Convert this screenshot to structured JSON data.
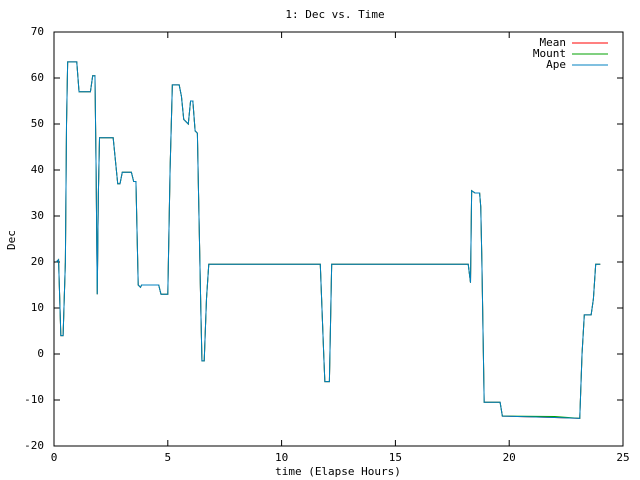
{
  "chart_data": {
    "type": "line",
    "title": "1: Dec vs. Time",
    "x_label": "time (Elapse Hours)",
    "y_label": "Dec",
    "x": [
      0.1,
      0.2,
      0.3,
      0.4,
      0.5,
      0.55,
      0.6,
      1.0,
      1.1,
      1.6,
      1.7,
      1.8,
      1.85,
      1.9,
      1.95,
      2.0,
      2.6,
      2.7,
      2.8,
      2.9,
      3.0,
      3.4,
      3.5,
      3.6,
      3.7,
      3.8,
      3.85,
      4.6,
      4.7,
      5.0,
      5.1,
      5.2,
      5.5,
      5.6,
      5.7,
      5.9,
      6.0,
      6.1,
      6.2,
      6.3,
      6.35,
      6.45,
      6.5,
      6.6,
      6.7,
      6.8,
      6.9,
      11.7,
      11.85,
      11.9,
      12.1,
      12.2,
      18.2,
      18.3,
      18.35,
      18.5,
      18.7,
      18.75,
      18.8,
      18.9,
      19.6,
      19.7,
      22.0,
      23.1,
      23.2,
      23.3,
      23.6,
      23.7,
      23.8,
      24.0
    ],
    "series": [
      {
        "name": "Mean",
        "color": "#ff0000",
        "values": [
          20,
          20.5,
          4,
          4,
          20,
          50,
          63.5,
          63.5,
          57,
          57,
          60.5,
          60.5,
          40,
          13,
          35,
          47,
          47,
          42,
          37,
          37,
          39.5,
          39.5,
          37.5,
          37.5,
          15,
          14.5,
          15,
          15,
          13,
          13,
          40,
          58.5,
          58.5,
          56,
          51,
          50,
          55,
          55,
          48.5,
          48,
          35,
          10,
          -1.5,
          -1.5,
          12,
          19.5,
          19.5,
          19.5,
          0,
          -6,
          -6,
          19.5,
          19.5,
          15.5,
          35.5,
          35,
          35,
          32,
          20,
          -10.5,
          -10.5,
          -13.5,
          -13.8,
          -14,
          0,
          8.5,
          8.5,
          12,
          19.5,
          19.5
        ]
      },
      {
        "name": "Mount",
        "color": "#00a000",
        "values": [
          20,
          20.5,
          4,
          4,
          20,
          50,
          63.5,
          63.5,
          57,
          57,
          60.5,
          60.5,
          40,
          13,
          35,
          47,
          47,
          42,
          37,
          37,
          39.5,
          39.5,
          37.5,
          37.5,
          15,
          14.5,
          15,
          15,
          13,
          13,
          40,
          58.5,
          58.5,
          56,
          51,
          50,
          55,
          55,
          48.5,
          48,
          35,
          10,
          -1.5,
          -1.5,
          12,
          19.5,
          19.5,
          19.5,
          0,
          -6,
          -6,
          19.5,
          19.5,
          15.5,
          35.5,
          35,
          35,
          32,
          20,
          -10.5,
          -10.5,
          -13.5,
          -13.6,
          -14,
          0,
          8.5,
          8.5,
          12,
          19.5,
          19.5
        ]
      },
      {
        "name": "Ape",
        "color": "#0080c0",
        "values": [
          20,
          20.5,
          4,
          4,
          20,
          50,
          63.5,
          63.5,
          57,
          57,
          60.5,
          60.5,
          40,
          13,
          35,
          47,
          47,
          42,
          37,
          37,
          39.5,
          39.5,
          37.5,
          37.5,
          15,
          14.5,
          15,
          15,
          13,
          13,
          40,
          58.5,
          58.5,
          56,
          51,
          50,
          55,
          55,
          48.5,
          48,
          35,
          10,
          -1.5,
          -1.5,
          12,
          19.5,
          19.5,
          19.5,
          0,
          -6,
          -6,
          19.5,
          19.5,
          15.5,
          35.5,
          35,
          35,
          32,
          20,
          -10.5,
          -10.5,
          -13.5,
          -13.8,
          -14,
          0,
          8.5,
          8.5,
          12,
          19.5,
          19.5
        ]
      }
    ],
    "xlim": [
      0,
      25
    ],
    "xticks": [
      0,
      5,
      10,
      15,
      20,
      25
    ],
    "ylim": [
      -20,
      70
    ],
    "yticks": [
      -20,
      -10,
      0,
      10,
      20,
      30,
      40,
      50,
      60,
      70
    ],
    "legend": "top-right",
    "grid": false
  }
}
